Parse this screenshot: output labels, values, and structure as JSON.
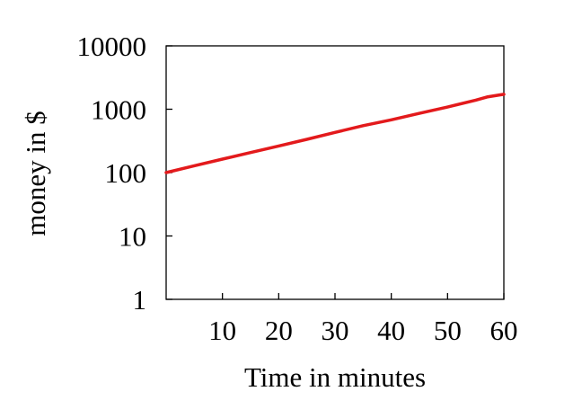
{
  "chart_data": {
    "type": "line",
    "title": "",
    "xlabel": "Time in minutes",
    "ylabel": "money in $",
    "x_ticks": [
      10,
      20,
      30,
      40,
      50,
      60
    ],
    "y_ticks": [
      1,
      10,
      100,
      1000,
      10000
    ],
    "y_tick_labels": [
      "1",
      "10",
      "100",
      "1000",
      "10000"
    ],
    "x_tick_labels": [
      "10",
      "20",
      "30",
      "40",
      "50",
      "60"
    ],
    "xlim": [
      0,
      60
    ],
    "ylim": [
      1,
      10000
    ],
    "yscale": "log",
    "grid": false,
    "legend": "none",
    "series": [
      {
        "color": "#e31a1c",
        "x": [
          0,
          5,
          10,
          15,
          20,
          25,
          30,
          35,
          40,
          45,
          50,
          55,
          57,
          60
        ],
        "y": [
          100,
          128,
          163,
          207,
          263,
          335,
          430,
          550,
          680,
          860,
          1080,
          1390,
          1560,
          1720
        ]
      }
    ]
  }
}
